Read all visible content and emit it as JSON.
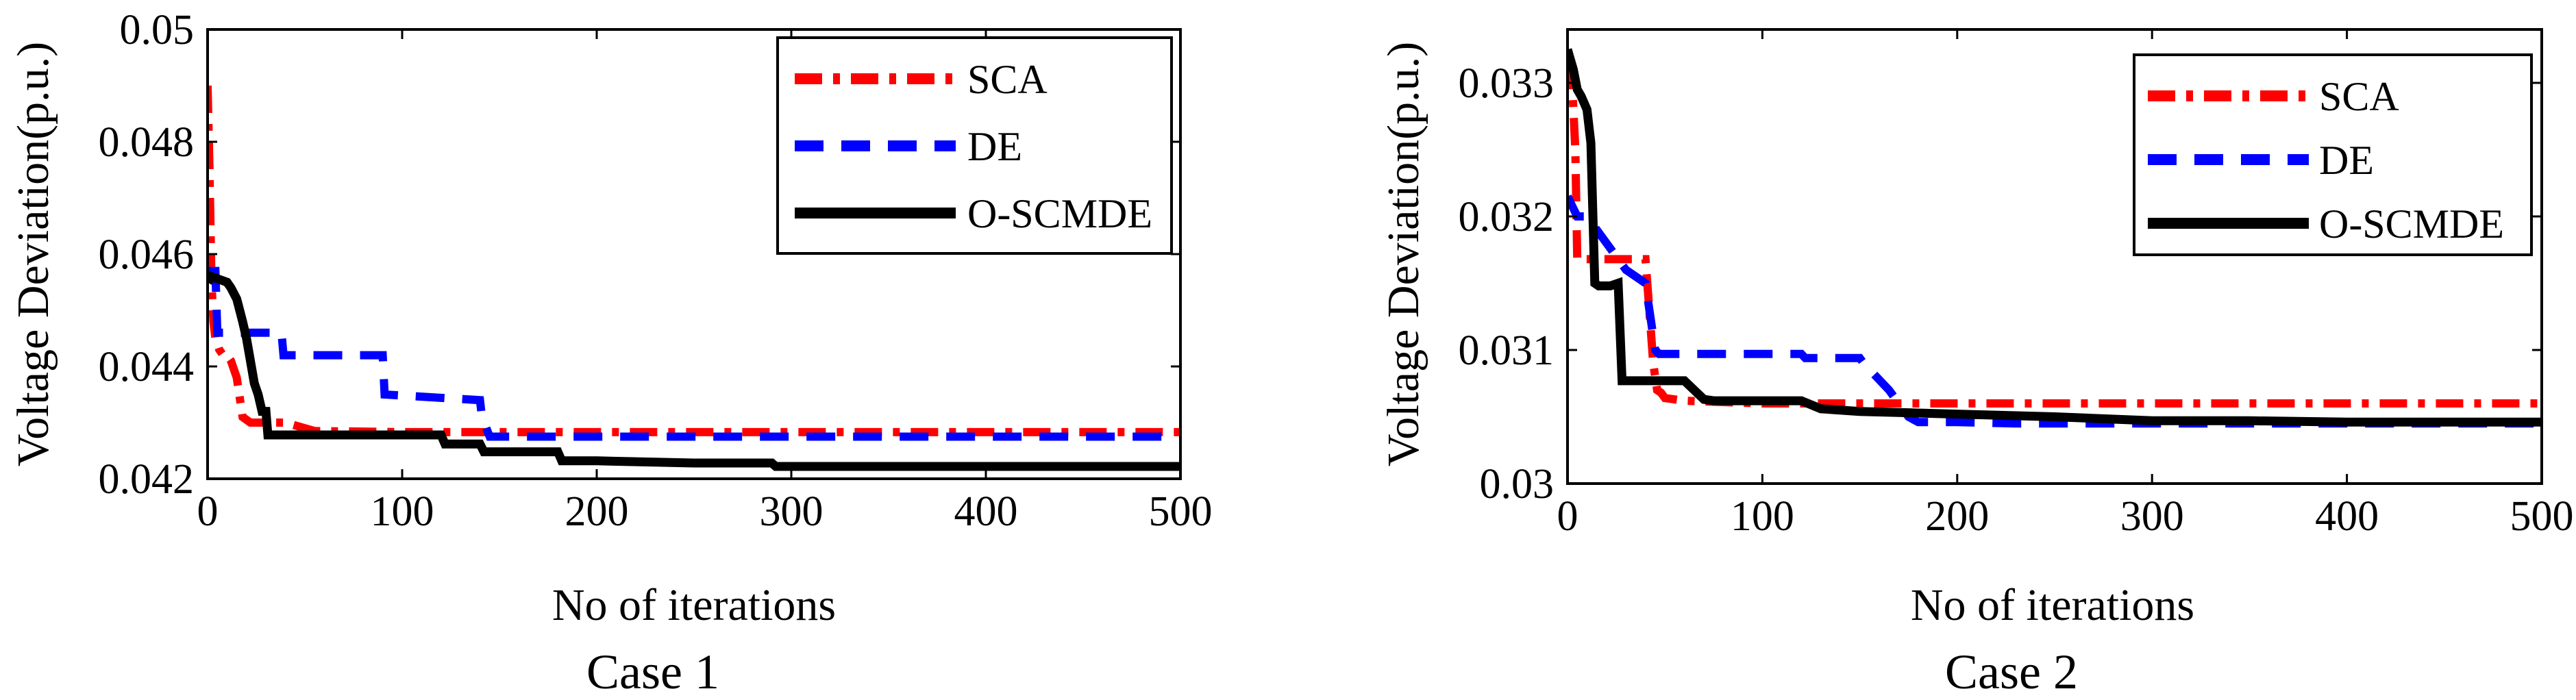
{
  "chart_data": [
    {
      "type": "line",
      "caption": "Case 1",
      "xlabel": "No of iterations",
      "ylabel": "Voltage Deviation(p.u.)",
      "xlim": [
        0,
        500
      ],
      "ylim": [
        0.042,
        0.05
      ],
      "xticks": [
        0,
        100,
        200,
        300,
        400,
        500
      ],
      "xtick_labels": [
        "0",
        "100",
        "200",
        "300",
        "400",
        "500"
      ],
      "yticks": [
        0.042,
        0.044,
        0.046,
        0.048,
        0.05
      ],
      "ytick_labels": [
        "0.042",
        "0.044",
        "0.046",
        "0.048",
        "0.05"
      ],
      "legend_position": "top-right",
      "series": [
        {
          "name": "SCA",
          "color": "#ff0000",
          "style": "dashdot",
          "x": [
            0,
            1,
            2,
            3,
            4,
            6,
            8,
            10,
            12,
            15,
            18,
            22,
            30,
            40,
            55,
            100,
            200,
            300,
            400,
            500
          ],
          "y": [
            0.049,
            0.0475,
            0.0455,
            0.0448,
            0.0445,
            0.0443,
            0.0442,
            0.0442,
            0.0441,
            0.0438,
            0.0431,
            0.043,
            0.043,
            0.043,
            0.04285,
            0.04283,
            0.04283,
            0.04283,
            0.04283,
            0.04283
          ]
        },
        {
          "name": "DE",
          "color": "#0000ff",
          "style": "dashed",
          "x": [
            0,
            4,
            5,
            38,
            39,
            90,
            91,
            140,
            141,
            145,
            150,
            200,
            300,
            400,
            500
          ],
          "y": [
            0.0457,
            0.0457,
            0.0446,
            0.0446,
            0.0442,
            0.0442,
            0.0435,
            0.0434,
            0.0431,
            0.04275,
            0.04275,
            0.04275,
            0.04275,
            0.04275,
            0.04275
          ]
        },
        {
          "name": "O-SCMDE",
          "color": "#000000",
          "style": "solid",
          "x": [
            0,
            2,
            10,
            12,
            15,
            18,
            20,
            22,
            24,
            26,
            28,
            30,
            31,
            50,
            100,
            120,
            122,
            140,
            142,
            160,
            180,
            182,
            200,
            250,
            290,
            292,
            350,
            400,
            500
          ],
          "y": [
            0.0455,
            0.0456,
            0.0455,
            0.0454,
            0.0452,
            0.0448,
            0.0445,
            0.0441,
            0.0437,
            0.0435,
            0.0432,
            0.0432,
            0.04278,
            0.04278,
            0.04278,
            0.04278,
            0.04262,
            0.04262,
            0.04248,
            0.04248,
            0.04248,
            0.04232,
            0.04232,
            0.04228,
            0.04228,
            0.04222,
            0.04222,
            0.04222,
            0.04222
          ]
        }
      ]
    },
    {
      "type": "line",
      "caption": "Case 2",
      "xlabel": "No of iterations",
      "ylabel": "Voltage Deviation(p.u.)",
      "xlim": [
        0,
        500
      ],
      "ylim": [
        0.03,
        0.0334
      ],
      "xticks": [
        0,
        100,
        200,
        300,
        400,
        500
      ],
      "xtick_labels": [
        "0",
        "100",
        "200",
        "300",
        "400",
        "500"
      ],
      "yticks": [
        0.03,
        0.031,
        0.032,
        0.033
      ],
      "ytick_labels": [
        "0.03",
        "0.031",
        "0.032",
        "0.033"
      ],
      "legend_position": "top-right",
      "series": [
        {
          "name": "SCA",
          "color": "#ff0000",
          "style": "dashdot",
          "x": [
            0,
            2,
            4,
            5,
            40,
            42,
            44,
            46,
            48,
            50,
            60,
            100,
            200,
            300,
            400,
            500
          ],
          "y": [
            0.03315,
            0.0331,
            0.0325,
            0.03168,
            0.03168,
            0.0313,
            0.0309,
            0.0307,
            0.03068,
            0.03064,
            0.03062,
            0.0306,
            0.0306,
            0.0306,
            0.0306,
            0.0306
          ]
        },
        {
          "name": "DE",
          "color": "#0000ff",
          "style": "dashed",
          "x": [
            0,
            5,
            10,
            20,
            30,
            40,
            45,
            47,
            50,
            60,
            100,
            120,
            122,
            150,
            152,
            165,
            170,
            175,
            180,
            200,
            230,
            300,
            400,
            500
          ],
          "y": [
            0.03215,
            0.032,
            0.032,
            0.0318,
            0.0316,
            0.0315,
            0.031,
            0.03097,
            0.03097,
            0.03097,
            0.03097,
            0.03097,
            0.03094,
            0.03094,
            0.0309,
            0.0307,
            0.0306,
            0.0305,
            0.03046,
            0.03046,
            0.03045,
            0.03045,
            0.03045,
            0.03045
          ]
        },
        {
          "name": "O-SCMDE",
          "color": "#000000",
          "style": "solid",
          "x": [
            0,
            1,
            3,
            5,
            7,
            10,
            12,
            14,
            16,
            18,
            20,
            22,
            26,
            28,
            30,
            60,
            70,
            75,
            120,
            130,
            150,
            200,
            250,
            300,
            350,
            400,
            500
          ],
          "y": [
            0.03325,
            0.0332,
            0.0331,
            0.03295,
            0.0329,
            0.0328,
            0.03255,
            0.0315,
            0.03148,
            0.03148,
            0.03148,
            0.03148,
            0.0315,
            0.03077,
            0.03077,
            0.03077,
            0.03063,
            0.03062,
            0.03062,
            0.03056,
            0.03054,
            0.03052,
            0.0305,
            0.03047,
            0.03047,
            0.03046,
            0.03046
          ]
        }
      ]
    }
  ]
}
